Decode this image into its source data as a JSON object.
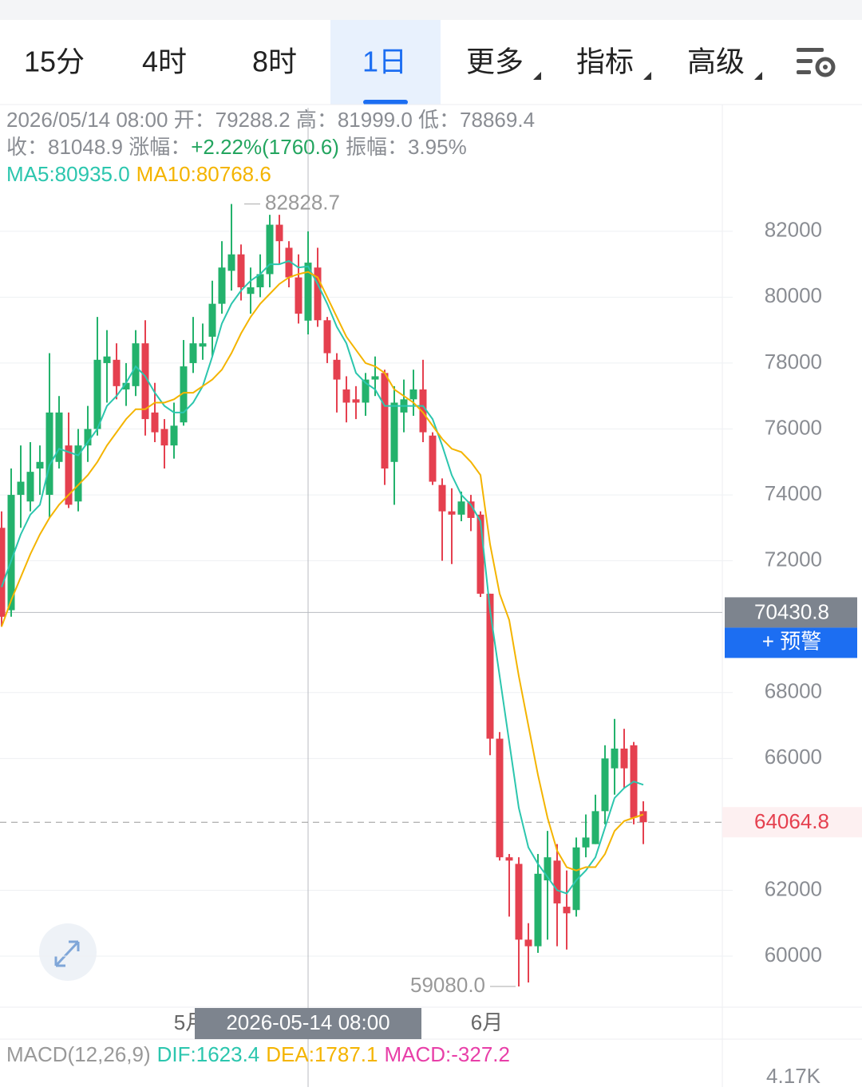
{
  "tabs": [
    "15分",
    "4时",
    "8时",
    "1日",
    "更多",
    "指标",
    "高级"
  ],
  "selected_tab": 3,
  "info": {
    "line1": "2026/05/14 08:00 开：79288.2 高：81999.0 低：78869.4",
    "close": "收：81048.9 涨幅：",
    "change": "+2.22%(1760.6)",
    "amplitude": "振幅：3.95%",
    "ma5": "MA5:80935.0",
    "ma10": "MA10:80768.6"
  },
  "chart_data": {
    "type": "candlestick",
    "up_color": "#23b26c",
    "down_color": "#e5404f",
    "ylim": [
      58450,
      85750
    ],
    "yticks": [
      60000,
      62000,
      66000,
      68000,
      72000,
      74000,
      76000,
      78000,
      80000,
      82000
    ],
    "grid": true,
    "open": [
      73000,
      70500,
      74000,
      73800,
      74800,
      74000,
      75000,
      75500,
      73800,
      75500,
      76000,
      78000,
      78100,
      77200,
      77300,
      78600,
      76500,
      76000,
      75500,
      76200,
      78000,
      78500,
      78800,
      79800,
      80800,
      81300,
      80100,
      80300,
      80700,
      82200,
      81500,
      80600,
      79288.2,
      80900,
      79300,
      78100,
      77200,
      76900,
      76800,
      77500,
      77700,
      75000,
      76500,
      76900,
      77200,
      75800,
      74300,
      73500,
      73400,
      73800,
      73400,
      71000,
      66600,
      63000,
      62800,
      60500,
      60300,
      62300,
      62900,
      61500,
      61400,
      63300,
      63400,
      64400,
      65700,
      66300,
      66400,
      64400
    ],
    "high": [
      73500,
      74800,
      75500,
      75600,
      75500,
      78300,
      77000,
      76500,
      76000,
      76700,
      79400,
      79000,
      78600,
      78000,
      79000,
      79300,
      77400,
      76300,
      76800,
      78700,
      79400,
      79200,
      80500,
      81700,
      82828.7,
      81600,
      80900,
      81300,
      82500,
      82500,
      81700,
      81300,
      81999,
      81500,
      79400,
      78300,
      77600,
      77300,
      77700,
      78200,
      77800,
      77300,
      77500,
      77800,
      78100,
      75900,
      74500,
      74200,
      74100,
      74000,
      73500,
      71000,
      66800,
      63100,
      63000,
      61000,
      63100,
      63800,
      63400,
      62600,
      63600,
      64300,
      64900,
      66400,
      67200,
      66900,
      66500,
      64700
    ],
    "low": [
      70000,
      70300,
      73000,
      73500,
      74000,
      73300,
      74800,
      73600,
      73500,
      75000,
      75800,
      76800,
      76900,
      76700,
      77000,
      75800,
      75600,
      74800,
      75100,
      76100,
      77700,
      78100,
      78200,
      79500,
      80200,
      79900,
      79500,
      80000,
      80300,
      81000,
      80300,
      79200,
      78869.4,
      79100,
      78000,
      76500,
      76200,
      76300,
      76400,
      77000,
      74300,
      73700,
      75900,
      76400,
      75600,
      74300,
      72000,
      71900,
      73200,
      72900,
      70900,
      66100,
      62900,
      61200,
      59080,
      59200,
      60100,
      60500,
      60300,
      60200,
      61200,
      63000,
      63400,
      64000,
      64900,
      65100,
      64000,
      63400
    ],
    "close": [
      70300,
      74000,
      74400,
      74700,
      75000,
      76500,
      76500,
      73700,
      75500,
      76000,
      78100,
      78200,
      77300,
      77400,
      78600,
      76300,
      75900,
      75500,
      76100,
      77900,
      78600,
      78600,
      79800,
      80900,
      81300,
      80300,
      80300,
      80700,
      82200,
      81700,
      80600,
      79500,
      81048.9,
      79300,
      78300,
      77500,
      76800,
      76800,
      77500,
      77600,
      74800,
      76800,
      76900,
      77200,
      75900,
      74400,
      73500,
      73400,
      73800,
      73300,
      71000,
      66600,
      63000,
      62900,
      60500,
      60300,
      62500,
      63000,
      61600,
      61300,
      63300,
      63600,
      64400,
      66000,
      66300,
      65700,
      64200,
      64064.8
    ],
    "ma": [
      {
        "name": "MA5",
        "color": "#2cc6ae",
        "values": [
          71200,
          72000,
          72800,
          73400,
          73700,
          74900,
          75400,
          75300,
          75200,
          75600,
          76000,
          76700,
          77000,
          77400,
          77900,
          77600,
          77100,
          76700,
          76500,
          76500,
          76800,
          77300,
          78200,
          79200,
          79800,
          80200,
          80500,
          80700,
          81000,
          81000,
          81100,
          80900,
          80935,
          80400,
          79800,
          79100,
          78600,
          77700,
          77400,
          77200,
          76700,
          76700,
          76700,
          76700,
          76700,
          76300,
          75500,
          74600,
          74000,
          73700,
          73200,
          70500,
          68500,
          66500,
          64500,
          63300,
          62800,
          62400,
          62000,
          61900,
          62300,
          62600,
          63000,
          63900,
          64800,
          65100,
          65300,
          65200
        ]
      },
      {
        "name": "MA10",
        "color": "#f4b400",
        "values": [
          70000,
          70800,
          71500,
          72200,
          72800,
          73300,
          73700,
          74000,
          74300,
          74600,
          75000,
          75500,
          75900,
          76300,
          76600,
          76600,
          76800,
          76800,
          76900,
          77100,
          77100,
          77300,
          77500,
          77800,
          78300,
          78900,
          79400,
          79800,
          80100,
          80400,
          80600,
          80700,
          80768.6,
          80600,
          80000,
          79400,
          78800,
          78400,
          78000,
          77900,
          77700,
          77200,
          77000,
          76800,
          76500,
          76100,
          75700,
          75400,
          75300,
          75000,
          74600,
          72500,
          71000,
          70200,
          68500,
          67000,
          65500,
          64200,
          63200,
          62700,
          62600,
          62700,
          62700,
          63100,
          63800,
          64100,
          64200,
          64300
        ]
      }
    ],
    "max_marker": 82828.7,
    "min_marker": {
      "value": 59080,
      "label": "59080.0"
    },
    "x_labels": [
      {
        "index": 19,
        "label": "5月"
      },
      {
        "index": 50,
        "label": "6月"
      }
    ],
    "crosshair": {
      "index": 32,
      "price": 70430.8,
      "time_label": "2026-05-14 08:00",
      "button": "+ 预警"
    },
    "last_price": 64064.8
  },
  "macd": {
    "name": "MACD(12,26,9)",
    "dif": "DIF:1623.4",
    "dea": "DEA:1787.1",
    "macd": "MACD:-327.2",
    "axis_label": "4.17K"
  }
}
